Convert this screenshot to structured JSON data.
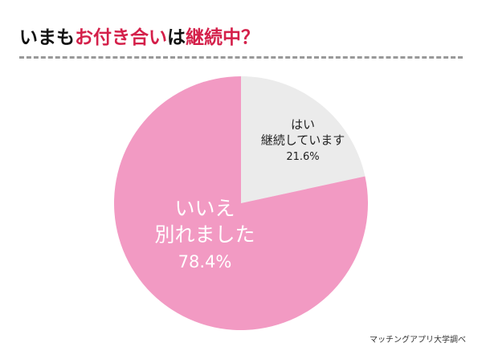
{
  "title": {
    "part1": "いまも",
    "part2": "お付き合い",
    "part3": "は",
    "part4": "継続中？"
  },
  "colors": {
    "title_accent": "#d4204a",
    "yes": "#ebebeb",
    "no": "#f29ac3",
    "divider": "#999999"
  },
  "chart_data": {
    "type": "pie",
    "start": "12 o'clock, clockwise",
    "slices": [
      {
        "label_line1": "はい",
        "label_line2": "継続しています",
        "percent_label": "21.6%",
        "value": 21.6,
        "color": "#ebebeb",
        "text_color": "#222222"
      },
      {
        "label_line1": "いいえ",
        "label_line2": "別れました",
        "percent_label": "78.4%",
        "value": 78.4,
        "color": "#f29ac3",
        "text_color": "#ffffff"
      }
    ]
  },
  "source": "マッチングアプリ大学調べ"
}
